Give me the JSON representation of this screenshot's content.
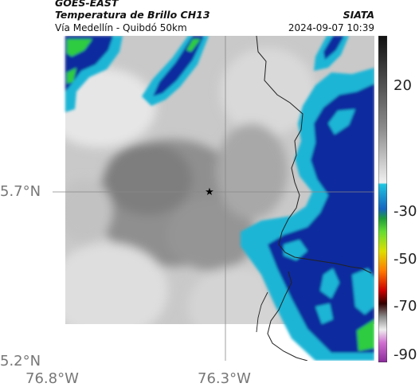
{
  "header": {
    "satellite": "GOES-EAST",
    "product": "Temperatura de Brillo CH13",
    "location": "Vía Medellín - Quibdó 50km",
    "agency": "SIATA",
    "timestamp": "2024-09-07 10:39"
  },
  "axes": {
    "x_ticks": [
      "76.8°W",
      "76.3°W"
    ],
    "y_ticks": [
      "5.7°N",
      "5.2°N"
    ]
  },
  "colorbar": {
    "ticks": [
      "20",
      "-30",
      "-50",
      "-70",
      "-90"
    ]
  },
  "marker": {
    "icon": "star-marker-icon"
  }
}
